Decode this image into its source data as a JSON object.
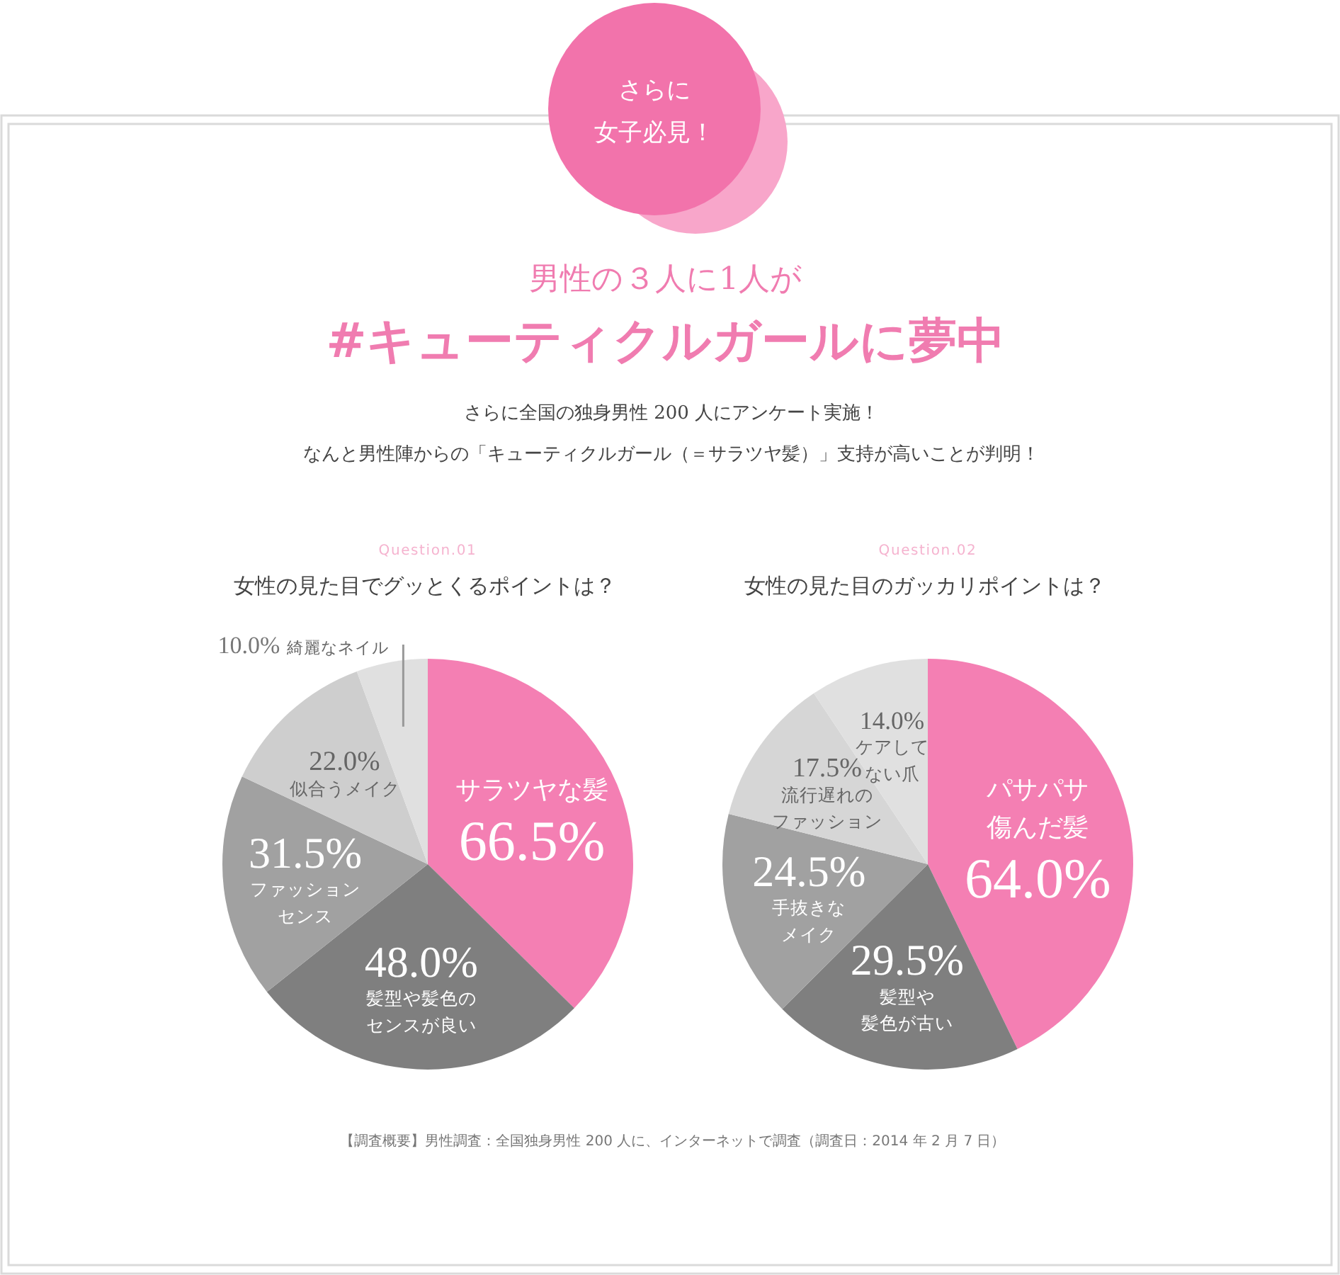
{
  "chart_data": [
    {
      "type": "other",
      "title": "男性の３人に1人が",
      "subtitle": "#キューティクルガールに夢中",
      "annotations": [
        "さらに女子必見！",
        "さらに全国の独身男性 200 人にアンケート実施！",
        "なんと男性陣からの「キューティクルガール（＝サラツヤ髪）」支持が高いことが判明！",
        "【調査概要】男性調査：全国独身男性 200 人に、インターネットで調査（調査日：2014 年 2 月 7 日）"
      ]
    },
    {
      "type": "pie",
      "title": "女性の見た目でグッとくるポイントは？",
      "annotations": [
        "Question.01"
      ],
      "categories": [
        "サラツヤな髪",
        "髪型や髪色のセンスが良い",
        "ファッションセンス",
        "似合うメイク",
        "綺麗なネイル"
      ],
      "values": [
        66.5,
        48.0,
        31.5,
        22.0,
        10.0
      ],
      "value_labels": [
        "66.5%",
        "48.0%",
        "31.5%",
        "22.0%",
        "10.0%"
      ],
      "colors": [
        "#f47fb3",
        "#7f7f7f",
        "#a1a1a1",
        "#cecece",
        "#e0e0e0"
      ]
    },
    {
      "type": "pie",
      "title": "女性の見た目のガッカリポイントは？",
      "annotations": [
        "Question.02"
      ],
      "categories": [
        "パサパサ傷んだ髪",
        "髪型や髪色が古い",
        "手抜きなメイク",
        "流行遅れのファッション",
        "ケアしてない爪"
      ],
      "values": [
        64.0,
        29.5,
        24.5,
        17.5,
        14.0
      ],
      "value_labels": [
        "64.0%",
        "29.5%",
        "24.5%",
        "17.5%",
        "14.0%"
      ],
      "colors": [
        "#f47fb3",
        "#7f7f7f",
        "#a1a1a1",
        "#d6d6d6",
        "#e0e0e0"
      ]
    }
  ]
}
